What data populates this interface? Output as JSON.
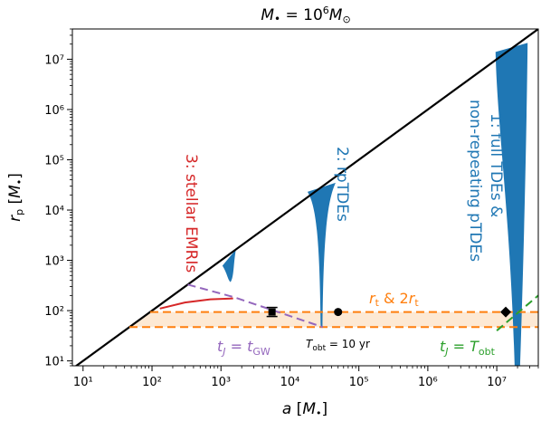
{
  "chart_data": {
    "type": "line",
    "title": "M• = 10⁶M⊙",
    "xlabel": "a [M•]",
    "ylabel": "rₚ [M•]",
    "x_scale": "log",
    "y_scale": "log",
    "xlim": [
      7,
      40000000
    ],
    "ylim": [
      8,
      40000000
    ],
    "x_ticks": [
      {
        "value": 10,
        "label": "10¹"
      },
      {
        "value": 100,
        "label": "10²"
      },
      {
        "value": 1000,
        "label": "10³"
      },
      {
        "value": 10000,
        "label": "10⁴"
      },
      {
        "value": 100000,
        "label": "10⁵"
      },
      {
        "value": 1000000,
        "label": "10⁶"
      },
      {
        "value": 10000000,
        "label": "10⁷"
      }
    ],
    "y_ticks": [
      {
        "value": 10,
        "label": "10¹"
      },
      {
        "value": 100,
        "label": "10²"
      },
      {
        "value": 1000,
        "label": "10³"
      },
      {
        "value": 10000,
        "label": "10⁴"
      },
      {
        "value": 100000,
        "label": "10⁵"
      },
      {
        "value": 1000000,
        "label": "10⁶"
      },
      {
        "value": 10000000,
        "label": "10⁷"
      }
    ],
    "grid": false,
    "lines": [
      {
        "name": "rp = a",
        "style": "solid",
        "color": "#000000",
        "points": [
          [
            7,
            7
          ],
          [
            40000000,
            40000000
          ]
        ]
      },
      {
        "name": "rt",
        "style": "dashed",
        "color": "#ff7f0e",
        "points": [
          [
            47,
            47
          ],
          [
            40000000,
            47
          ]
        ]
      },
      {
        "name": "2rt",
        "style": "dashed",
        "color": "#ff7f0e",
        "points": [
          [
            94,
            94
          ],
          [
            40000000,
            94
          ]
        ]
      },
      {
        "name": "tJ = tGW",
        "style": "dashed",
        "color": "#9467bd",
        "points": [
          [
            330,
            330
          ],
          [
            1550,
            185
          ],
          [
            30000,
            47
          ]
        ]
      },
      {
        "name": "tJ = Tobt",
        "style": "dashed",
        "color": "#2ca02c",
        "points": [
          [
            10000000,
            40
          ],
          [
            40000000,
            200
          ]
        ]
      },
      {
        "name": "stellar EMRIs",
        "style": "solid",
        "color": "#d62728",
        "points": [
          [
            130,
            110
          ],
          [
            300,
            145
          ],
          [
            700,
            168
          ],
          [
            1500,
            175
          ]
        ]
      }
    ],
    "shaded_regions": [
      {
        "name": "rt to 2rt band",
        "color": "#fde9d4",
        "x_range": [
          47,
          40000000
        ],
        "y_range": [
          47,
          94
        ]
      }
    ],
    "filled_regions": [
      {
        "name": "1: full TDEs & non-repeating pTDEs",
        "color": "#1f77b4",
        "x_range": [
          9600000,
          28000000
        ],
        "y_range": [
          8,
          14000000
        ]
      },
      {
        "name": "2: rpTDEs",
        "color": "#1f77b4",
        "x_range": [
          18000,
          46000
        ],
        "y_range": [
          47,
          35000
        ]
      },
      {
        "name": "3: stellar EMRIs (blue)",
        "color": "#1f77b4",
        "x_range": [
          1050,
          1650
        ],
        "y_range": [
          370,
          1650
        ]
      }
    ],
    "points": [
      {
        "x": 5500,
        "y": 94,
        "marker": "bar",
        "color": "#000000"
      },
      {
        "x": 50000,
        "y": 94,
        "marker": "circle",
        "color": "#000000"
      },
      {
        "x": 13500000,
        "y": 94,
        "marker": "diamond",
        "color": "#000000"
      }
    ],
    "annotations": {
      "region1": [
        "1: full TDEs &",
        "non-repeating pTDEs"
      ],
      "region2": "2: rpTDEs",
      "region3": "3: stellar EMRIs",
      "rt_label": "rₜ & 2rₜ",
      "tgw_label": "tⱼ = tᴳᵂ",
      "tobt_label": "Tₒᵦₜ = 10 yr",
      "tjtobt_label": "tⱼ = Tₒᵦₜ"
    }
  }
}
